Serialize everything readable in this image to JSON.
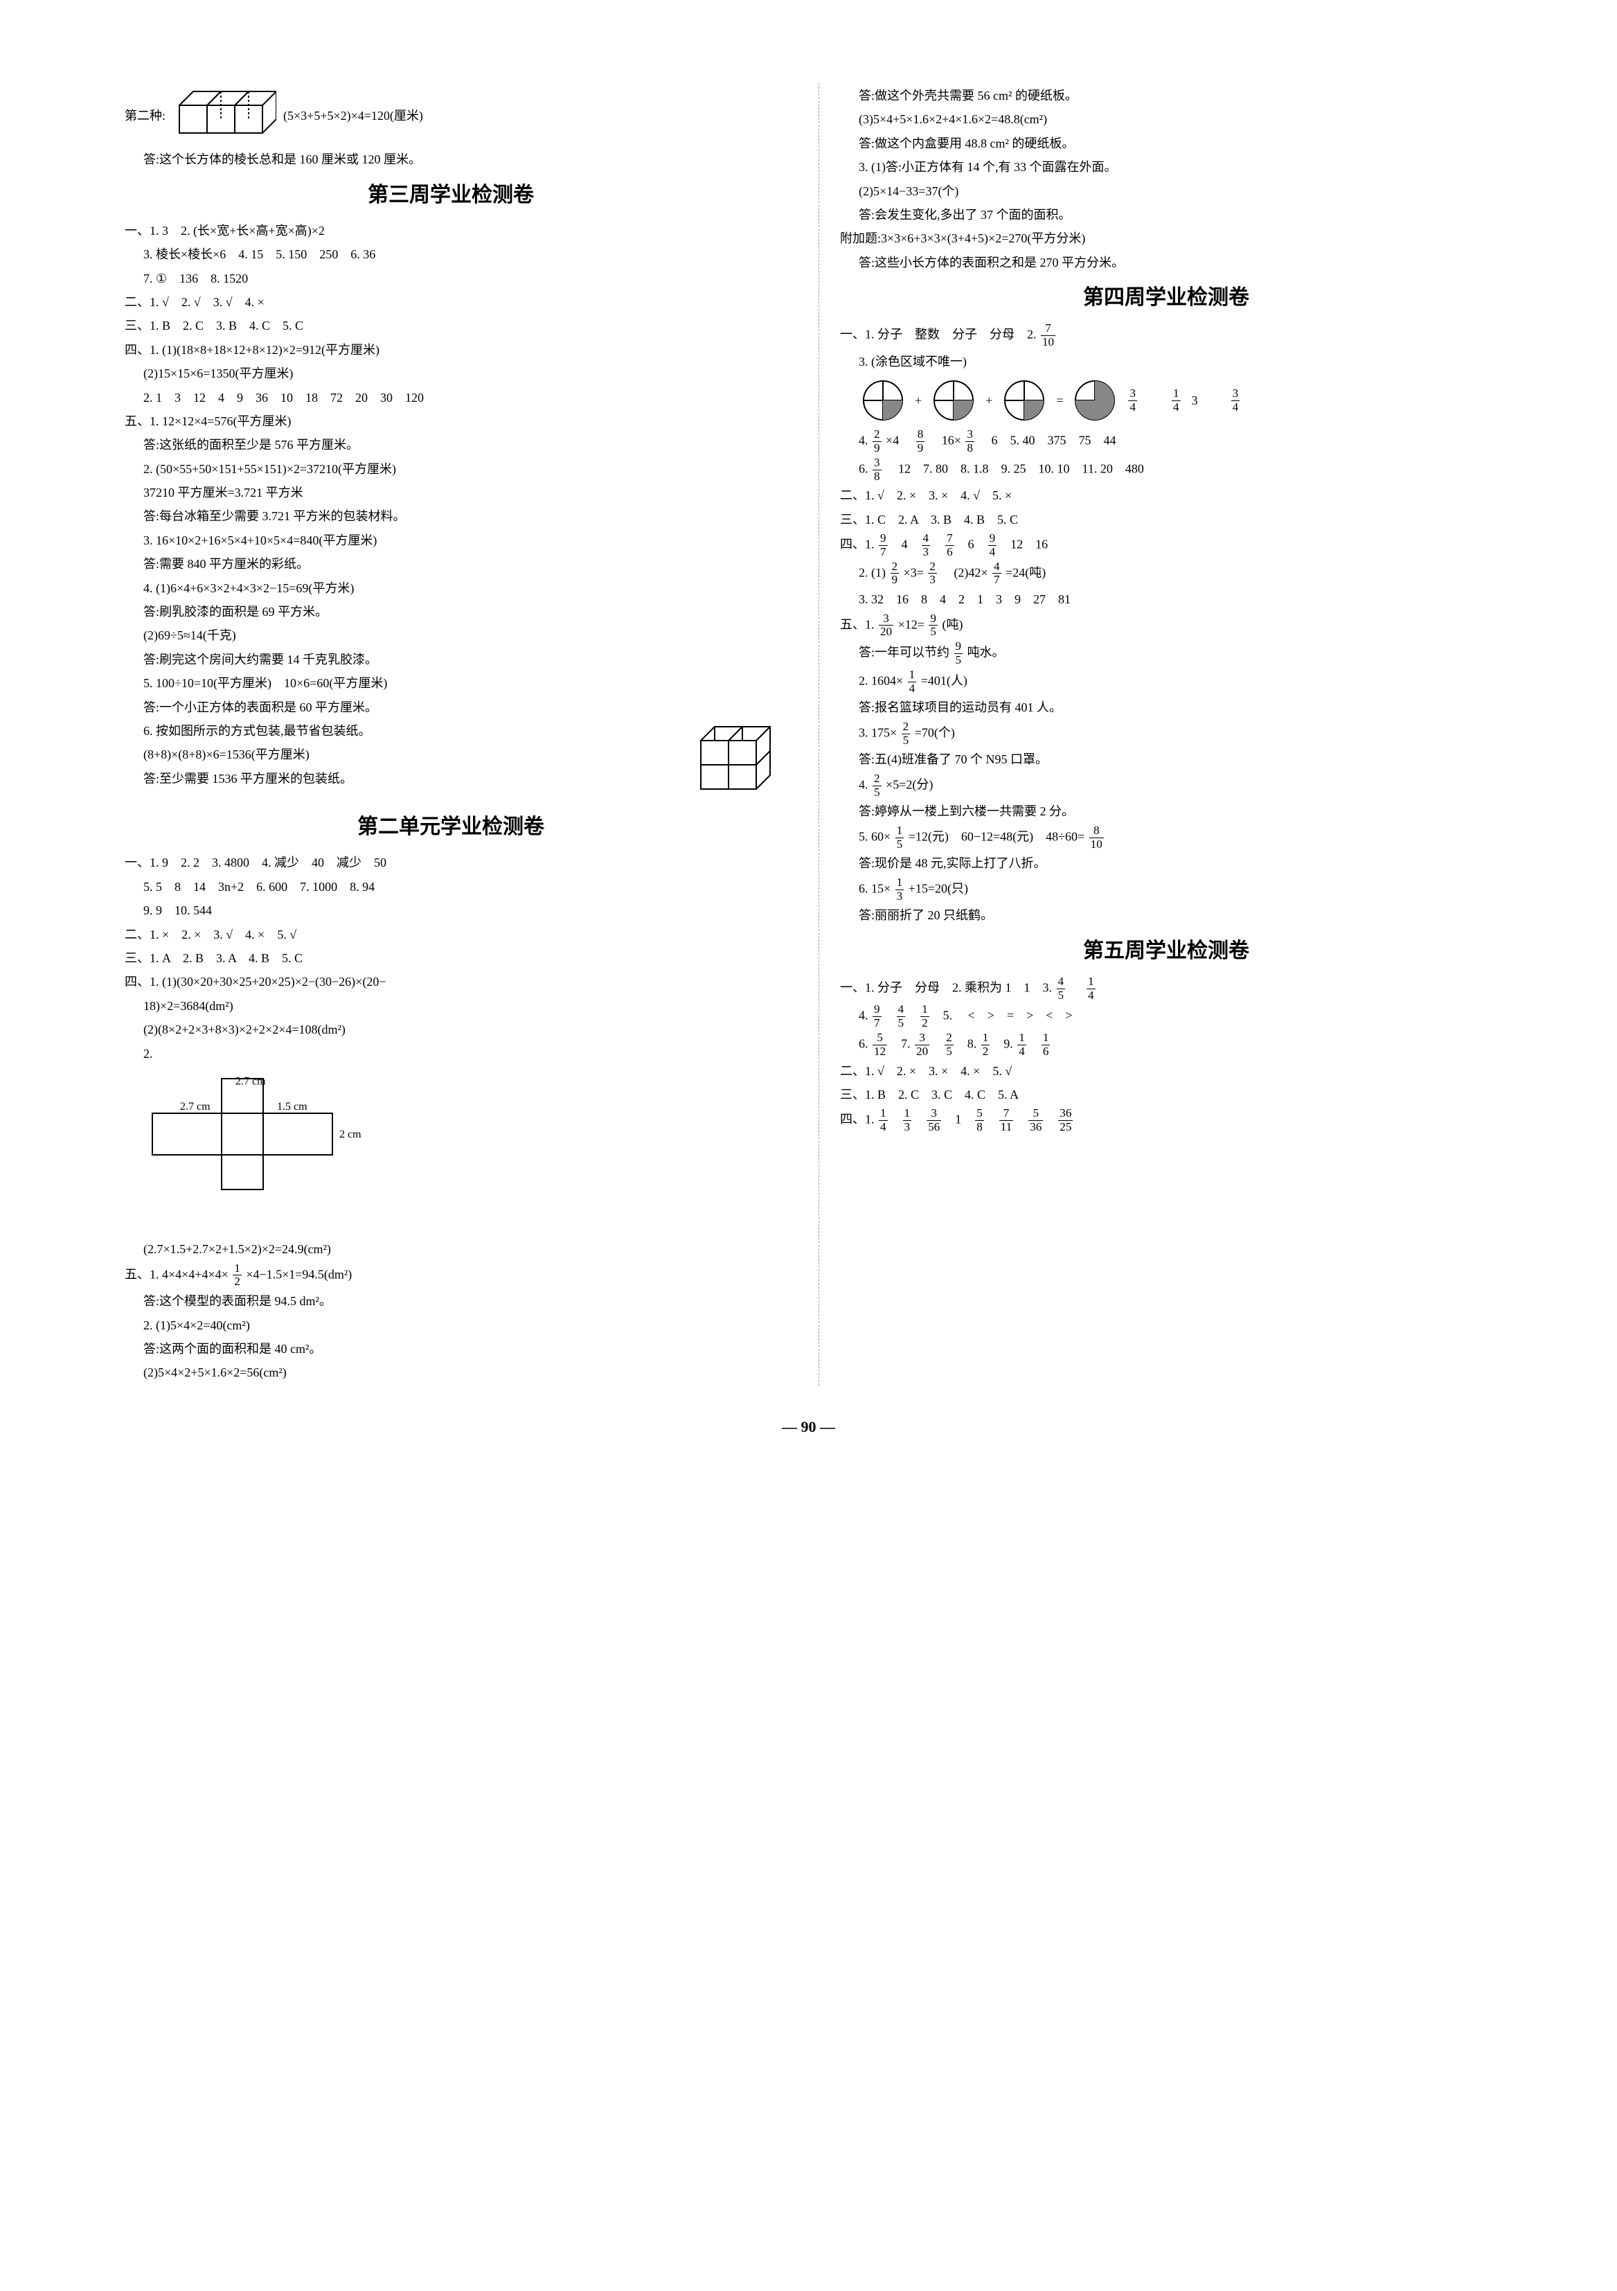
{
  "page_number": "— 90 —",
  "left": {
    "opening_label": "第二种:",
    "opening_formula": "(5×3+5+5×2)×4=120(厘米)",
    "opening_answer": "答:这个长方体的棱长总和是 160 厘米或 120 厘米。",
    "title_week3": "第三周学业检测卷",
    "w3_1_1": "一、1. 3　2. (长×宽+长×高+宽×高)×2",
    "w3_1_2": "3. 棱长×棱长×6　4. 15　5. 150　250　6. 36",
    "w3_1_3": "7. ①　136　8. 1520",
    "w3_2": "二、1. √　2. √　3. √　4. ×",
    "w3_3": "三、1. B　2. C　3. B　4. C　5. C",
    "w3_4_1": "四、1. (1)(18×8+18×12+8×12)×2=912(平方厘米)",
    "w3_4_2": "(2)15×15×6=1350(平方厘米)",
    "w3_4_3": "2. 1　3　12　4　9　36　10　18　72　20　30　120",
    "w3_5_1": "五、1. 12×12×4=576(平方厘米)",
    "w3_5_1a": "答:这张纸的面积至少是 576 平方厘米。",
    "w3_5_2": "2. (50×55+50×151+55×151)×2=37210(平方厘米)",
    "w3_5_2b": "37210 平方厘米=3.721 平方米",
    "w3_5_2a": "答:每台冰箱至少需要 3.721 平方米的包装材料。",
    "w3_5_3": "3. 16×10×2+16×5×4+10×5×4=840(平方厘米)",
    "w3_5_3a": "答:需要 840 平方厘米的彩纸。",
    "w3_5_4": "4. (1)6×4+6×3×2+4×3×2−15=69(平方米)",
    "w3_5_4a": "答:刷乳胶漆的面积是 69 平方米。",
    "w3_5_4b": "(2)69÷5≈14(千克)",
    "w3_5_4c": "答:刷完这个房间大约需要 14 千克乳胶漆。",
    "w3_5_5": "5. 100÷10=10(平方厘米)　10×6=60(平方厘米)",
    "w3_5_5a": "答:一个小正方体的表面积是 60 平方厘米。",
    "w3_5_6": "6. 按如图所示的方式包装,最节省包装纸。",
    "w3_5_6b": "(8+8)×(8+8)×6=1536(平方厘米)",
    "w3_5_6a": "答:至少需要 1536 平方厘米的包装纸。",
    "title_unit2": "第二单元学业检测卷",
    "u2_1_1": "一、1. 9　2. 2　3. 4800　4. 减少　40　减少　50",
    "u2_1_2": "5. 5　8　14　3n+2　6. 600　7. 1000　8. 94",
    "u2_1_3": "9. 9　10. 544",
    "u2_2": "二、1. ×　2. ×　3. √　4. ×　5. √",
    "u2_3": "三、1. A　2. B　3. A　4. B　5. C",
    "u2_4_1a": "四、1. (1)(30×20+30×25+20×25)×2−(30−26)×(20−",
    "u2_4_1b": "18)×2=3684(dm²)",
    "u2_4_2": "(2)(8×2+2×3+8×3)×2+2×2×4=108(dm²)",
    "u2_4_2b": "2.",
    "net_labels": {
      "a": "2.7 cm",
      "b": "2.7 cm",
      "c": "1.5 cm",
      "d": "2 cm"
    },
    "u2_4_2c": "(2.7×1.5+2.7×2+1.5×2)×2=24.9(cm²)",
    "u2_5_1_pre": "五、1. 4×4×4+4×4×",
    "u2_5_1_mid": "×4−1.5×1=94.5(dm²)",
    "u2_5_1_frac": {
      "n": "1",
      "d": "2"
    },
    "u2_5_1a": "答:这个模型的表面积是 94.5 dm²。",
    "u2_5_2": "2. (1)5×4×2=40(cm²)",
    "u2_5_2a": "答:这两个面的面积和是 40 cm²。",
    "u2_5_2b": "(2)5×4×2+5×1.6×2=56(cm²)"
  },
  "right": {
    "r_top_1": "答:做这个外壳共需要 56 cm² 的硬纸板。",
    "r_top_2": "(3)5×4+5×1.6×2+4×1.6×2=48.8(cm²)",
    "r_top_3": "答:做这个内盒要用 48.8 cm² 的硬纸板。",
    "r_top_4": "3. (1)答:小正方体有 14 个,有 33 个面露在外面。",
    "r_top_5": "(2)5×14−33=37(个)",
    "r_top_6": "答:会发生变化,多出了 37 个面的面积。",
    "r_top_7": "附加题:3×3×6+3×3×(3+4+5)×2=270(平方分米)",
    "r_top_8": "答:这些小长方体的表面积之和是 270 平方分米。",
    "title_week4": "第四周学业检测卷",
    "w4_1_1_pre": "一、1. 分子　整数　分子　分母　2. ",
    "w4_1_1_frac": {
      "n": "7",
      "d": "10"
    },
    "w4_1_3": "3. (涂色区域不唯一)",
    "pie_fracs": [
      {
        "n": "3",
        "d": "4"
      },
      {
        "n": "1",
        "d": "4"
      },
      {
        "label": "3"
      },
      {
        "n": "3",
        "d": "4"
      }
    ],
    "w4_1_4_pre": "4. ",
    "w4_1_4_a": {
      "n": "2",
      "d": "9"
    },
    "w4_1_4_b": "×4　",
    "w4_1_4_c": {
      "n": "8",
      "d": "9"
    },
    "w4_1_4_d": "　16×",
    "w4_1_4_e": {
      "n": "3",
      "d": "8"
    },
    "w4_1_4_f": "　6　5. 40　375　75　44",
    "w4_1_6_pre": "6. ",
    "w4_1_6_frac": {
      "n": "3",
      "d": "8"
    },
    "w4_1_6_rest": "　12　7. 80　8. 1.8　9. 25　10. 10　11. 20　480",
    "w4_2": "二、1. √　2. ×　3. ×　4. √　5. ×",
    "w4_3": "三、1. C　2. A　3. B　4. B　5. C",
    "w4_4_1_pre": "四、1. ",
    "w4_4_1_parts": [
      {
        "n": "9",
        "d": "7"
      },
      "　4　",
      {
        "n": "4",
        "d": "3"
      },
      "　",
      {
        "n": "7",
        "d": "6"
      },
      "　6　",
      {
        "n": "9",
        "d": "4"
      },
      "　12　16"
    ],
    "w4_4_2_pre": "2. (1)",
    "w4_4_2_a": {
      "n": "2",
      "d": "9"
    },
    "w4_4_2_b": "×3=",
    "w4_4_2_c": {
      "n": "2",
      "d": "3"
    },
    "w4_4_2_d": "　(2)42×",
    "w4_4_2_e": {
      "n": "4",
      "d": "7"
    },
    "w4_4_2_f": "=24(吨)",
    "w4_4_3": "3. 32　16　8　4　2　1　3　9　27　81",
    "w4_5_1_pre": "五、1. ",
    "w4_5_1_a": {
      "n": "3",
      "d": "20"
    },
    "w4_5_1_b": "×12=",
    "w4_5_1_c": {
      "n": "9",
      "d": "5"
    },
    "w4_5_1_d": "(吨)",
    "w4_5_1ans_pre": "答:一年可以节约",
    "w4_5_1ans_frac": {
      "n": "9",
      "d": "5"
    },
    "w4_5_1ans_post": "吨水。",
    "w4_5_2_pre": "2. 1604×",
    "w4_5_2_frac": {
      "n": "1",
      "d": "4"
    },
    "w4_5_2_post": "=401(人)",
    "w4_5_2a": "答:报名篮球项目的运动员有 401 人。",
    "w4_5_3_pre": "3. 175×",
    "w4_5_3_frac": {
      "n": "2",
      "d": "5"
    },
    "w4_5_3_post": "=70(个)",
    "w4_5_3a": "答:五(4)班准备了 70 个 N95 口罩。",
    "w4_5_4_pre": "4. ",
    "w4_5_4_frac": {
      "n": "2",
      "d": "5"
    },
    "w4_5_4_post": "×5=2(分)",
    "w4_5_4a": "答:婷婷从一楼上到六楼一共需要 2 分。",
    "w4_5_5_pre": "5. 60×",
    "w4_5_5_frac": {
      "n": "1",
      "d": "5"
    },
    "w4_5_5_mid": "=12(元)　60−12=48(元)　48÷60=",
    "w4_5_5_frac2": {
      "n": "8",
      "d": "10"
    },
    "w4_5_5a": "答:现价是 48 元,实际上打了八折。",
    "w4_5_6_pre": "6. 15×",
    "w4_5_6_frac": {
      "n": "1",
      "d": "3"
    },
    "w4_5_6_post": "+15=20(只)",
    "w4_5_6a": "答:丽丽折了 20 只纸鹤。",
    "title_week5": "第五周学业检测卷",
    "w5_1_1_pre": "一、1. 分子　分母　2. 乘积为 1　1　3. ",
    "w5_1_1_a": {
      "n": "4",
      "d": "5"
    },
    "w5_1_1_b": "　",
    "w5_1_1_c": {
      "n": "1",
      "d": "4"
    },
    "w5_1_4_pre": "4. ",
    "w5_1_4": [
      {
        "n": "9",
        "d": "7"
      },
      "　",
      {
        "n": "4",
        "d": "5"
      },
      "　",
      {
        "n": "1",
        "d": "2"
      },
      "　5. 　<　>　=　>　<　>"
    ],
    "w5_1_6_pre": "6. ",
    "w5_1_6": [
      {
        "n": "5",
        "d": "12"
      },
      "　7. ",
      {
        "n": "3",
        "d": "20"
      },
      "　",
      {
        "n": "2",
        "d": "5"
      },
      "　8. ",
      {
        "n": "1",
        "d": "2"
      },
      "　9. ",
      {
        "n": "1",
        "d": "4"
      },
      "　",
      {
        "n": "1",
        "d": "6"
      }
    ],
    "w5_2": "二、1. √　2. ×　3. ×　4. ×　5. √",
    "w5_3": "三、1. B　2. C　3. C　4. C　5. A",
    "w5_4_pre": "四、1. ",
    "w5_4": [
      {
        "n": "1",
        "d": "4"
      },
      "　",
      {
        "n": "1",
        "d": "3"
      },
      "　",
      {
        "n": "3",
        "d": "56"
      },
      "　1　",
      {
        "n": "5",
        "d": "8"
      },
      "　",
      {
        "n": "7",
        "d": "11"
      },
      "　",
      {
        "n": "5",
        "d": "36"
      },
      "　",
      {
        "n": "36",
        "d": "25"
      }
    ]
  }
}
